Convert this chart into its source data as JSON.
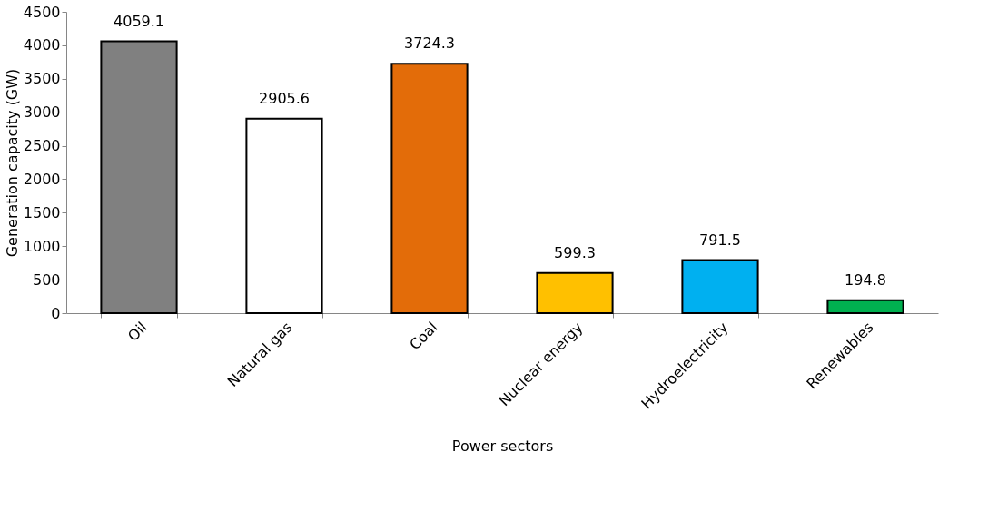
{
  "chart_data": {
    "type": "bar",
    "xlabel": "Power sectors",
    "ylabel": "Generation capacity (GW)",
    "categories": [
      "Oil",
      "Natural gas",
      "Coal",
      "Nuclear energy",
      "Hydroelectricity",
      "Renewables"
    ],
    "values": [
      4059.1,
      2905.6,
      3724.3,
      599.3,
      791.5,
      194.8
    ],
    "colors": [
      "#808080",
      "#ffffff",
      "#e36c09",
      "#ffc000",
      "#00b0f0",
      "#00b050"
    ],
    "ylim": [
      0,
      4500
    ],
    "yticks": [
      0,
      500,
      1000,
      1500,
      2000,
      2500,
      3000,
      3500,
      4000,
      4500
    ],
    "grid": false,
    "data_labels": true
  }
}
